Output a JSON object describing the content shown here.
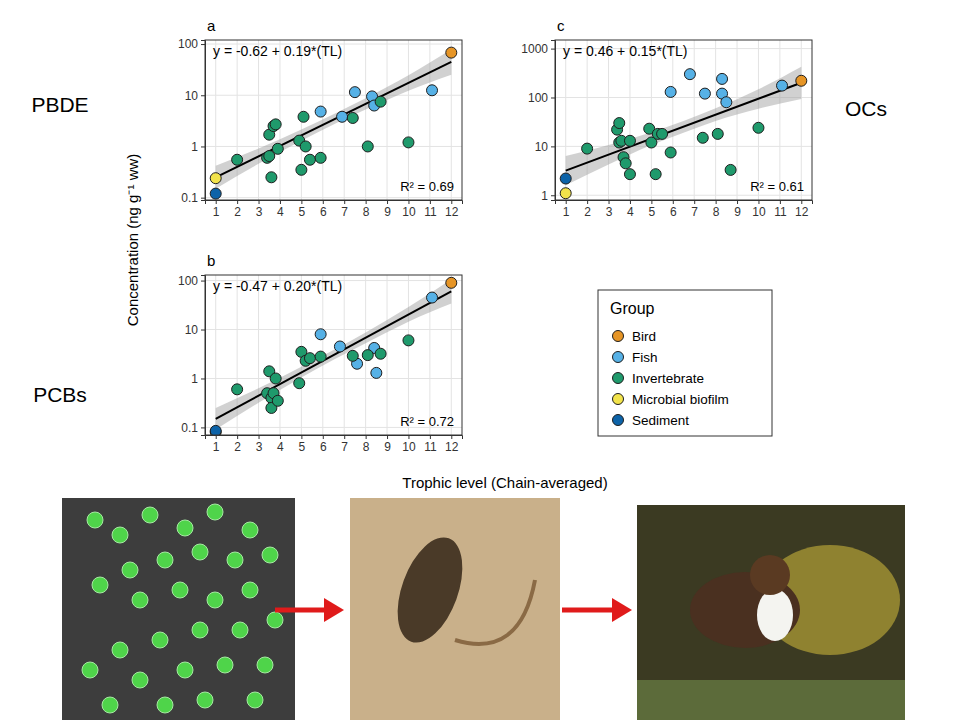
{
  "chart_data": [
    {
      "type": "scatter",
      "panel": "a",
      "compound": "PBDE",
      "equation": "y = -0.62 + 0.19*(TL)",
      "r2": "R² = 0.69",
      "log": "y",
      "grid": true,
      "xlim": [
        0.5,
        12.5
      ],
      "xticks": [
        1,
        2,
        3,
        4,
        5,
        6,
        7,
        8,
        9,
        10,
        11,
        12
      ],
      "ylim": [
        0.09,
        120
      ],
      "yticks": [
        0.1,
        1,
        10,
        100
      ],
      "series": [
        {
          "name": "Bird",
          "color": "#e69526",
          "x": [
            12
          ],
          "values": [
            68
          ]
        },
        {
          "name": "Fish",
          "color": "#56b1e6",
          "x": [
            5.9,
            6.9,
            7.5,
            8.3,
            8.4,
            11.1
          ],
          "values": [
            4.8,
            3.8,
            11.5,
            9.5,
            6.3,
            12.5
          ]
        },
        {
          "name": "Invertebrate",
          "color": "#1f9a6c",
          "x": [
            2,
            3.4,
            3.5,
            3.5,
            3.6,
            3.7,
            3.8,
            3.9,
            4.9,
            5.0,
            5.1,
            5.2,
            5.4,
            5.9,
            7.4,
            8.1,
            8.7,
            10
          ],
          "values": [
            0.55,
            0.6,
            0.65,
            1.7,
            0.25,
            2.5,
            2.7,
            0.9,
            1.3,
            0.35,
            3.8,
            1.0,
            0.55,
            0.6,
            3.6,
            1.0,
            7.5,
            1.2
          ]
        },
        {
          "name": "Microbial biofilm",
          "color": "#f2e34b",
          "x": [
            1
          ],
          "values": [
            0.24
          ]
        },
        {
          "name": "Sediment",
          "color": "#0d63a8",
          "x": [
            1
          ],
          "values": [
            0.12
          ]
        }
      ],
      "fit": {
        "x": [
          1,
          12
        ],
        "values": [
          0.25,
          45
        ]
      },
      "band": {
        "x": [
          1,
          3,
          5,
          6.5,
          8,
          10,
          12
        ],
        "lower": [
          0.15,
          0.46,
          1.29,
          2.69,
          5.25,
          12.3,
          25.1
        ],
        "upper": [
          0.42,
          0.91,
          2.14,
          4.27,
          8.71,
          24.5,
          79.4
        ]
      }
    },
    {
      "type": "scatter",
      "panel": "b",
      "compound": "PCBs",
      "equation": "y = -0.47 + 0.20*(TL)",
      "r2": "R² = 0.72",
      "log": "y",
      "grid": true,
      "xlim": [
        0.5,
        12.5
      ],
      "xticks": [
        1,
        2,
        3,
        4,
        5,
        6,
        7,
        8,
        9,
        10,
        11,
        12
      ],
      "ylim": [
        0.07,
        130
      ],
      "yticks": [
        0.1,
        1,
        10,
        100
      ],
      "series": [
        {
          "name": "Bird",
          "color": "#e69526",
          "x": [
            12
          ],
          "values": [
            90
          ]
        },
        {
          "name": "Fish",
          "color": "#56b1e6",
          "x": [
            5.9,
            6.8,
            7.6,
            8.4,
            8.5,
            11.1
          ],
          "values": [
            8,
            4.5,
            2,
            4.2,
            1.3,
            45
          ]
        },
        {
          "name": "Invertebrate",
          "color": "#1f9a6c",
          "x": [
            2,
            3.4,
            3.5,
            3.6,
            3.6,
            3.7,
            3.8,
            3.9,
            4.9,
            5.0,
            5.2,
            5.4,
            5.9,
            7.4,
            8.1,
            8.7,
            10
          ],
          "values": [
            0.6,
            0.5,
            1.4,
            0.4,
            0.25,
            0.5,
            1.0,
            0.35,
            0.8,
            3.5,
            2.3,
            2.6,
            2.8,
            2.9,
            3.0,
            3.2,
            6
          ]
        },
        {
          "name": "Microbial biofilm",
          "color": "#f2e34b",
          "x": [
            1
          ],
          "values": [
            0.08
          ]
        },
        {
          "name": "Sediment",
          "color": "#0d63a8",
          "x": [
            1
          ],
          "values": [
            0.085
          ]
        }
      ],
      "fit": {
        "x": [
          1,
          12
        ],
        "values": [
          0.15,
          60
        ]
      },
      "band": {
        "x": [
          1,
          3,
          5,
          6.5,
          8,
          10,
          12
        ],
        "lower": [
          0.091,
          0.32,
          1.05,
          2.4,
          5.25,
          14.5,
          33.9
        ],
        "upper": [
          0.25,
          0.63,
          1.74,
          3.8,
          8.71,
          28.8,
          107
        ]
      }
    },
    {
      "type": "scatter",
      "panel": "c",
      "compound": "OCs",
      "equation": "y = 0.46 + 0.15*(TL)",
      "r2": "R² = 0.61",
      "log": "y",
      "grid": true,
      "xlim": [
        0.5,
        12.5
      ],
      "xticks": [
        1,
        2,
        3,
        4,
        5,
        6,
        7,
        8,
        9,
        10,
        11,
        12
      ],
      "ylim": [
        0.8,
        1500
      ],
      "yticks": [
        1,
        10,
        100,
        1000
      ],
      "series": [
        {
          "name": "Bird",
          "color": "#e69526",
          "x": [
            12
          ],
          "values": [
            220
          ]
        },
        {
          "name": "Fish",
          "color": "#56b1e6",
          "x": [
            5.9,
            6.8,
            7.5,
            8.3,
            8.3,
            8.5,
            11.1
          ],
          "values": [
            130,
            300,
            120,
            240,
            120,
            80,
            175
          ]
        },
        {
          "name": "Invertebrate",
          "color": "#1f9a6c",
          "x": [
            2,
            3.4,
            3.5,
            3.5,
            3.6,
            3.7,
            3.8,
            4.0,
            4.0,
            4.9,
            5.0,
            5.2,
            5.3,
            5.5,
            5.9,
            7.4,
            8.1,
            8.7,
            10
          ],
          "values": [
            9,
            22,
            30,
            12,
            13,
            6,
            4.5,
            2.7,
            13,
            23,
            12,
            2.7,
            18,
            18,
            7.5,
            15,
            18,
            3.3,
            24
          ]
        },
        {
          "name": "Microbial biofilm",
          "color": "#f2e34b",
          "x": [
            1
          ],
          "values": [
            1.1
          ]
        },
        {
          "name": "Sediment",
          "color": "#0d63a8",
          "x": [
            1
          ],
          "values": [
            2.2
          ]
        }
      ],
      "fit": {
        "x": [
          1,
          12
        ],
        "values": [
          3.2,
          200
        ]
      },
      "band": {
        "x": [
          1,
          3,
          5,
          6.5,
          8,
          10,
          12
        ],
        "lower": [
          1.6,
          4.27,
          10.7,
          19.1,
          33.1,
          58.9,
          93.3
        ],
        "upper": [
          6.38,
          10.7,
          19.5,
          33.1,
          60.3,
          148,
          427
        ]
      }
    }
  ],
  "legend_title": "Group",
  "x_label": "Trophic level (Chain-averaged)",
  "y_label": "Concentration (ng g⁻¹ ww)"
}
